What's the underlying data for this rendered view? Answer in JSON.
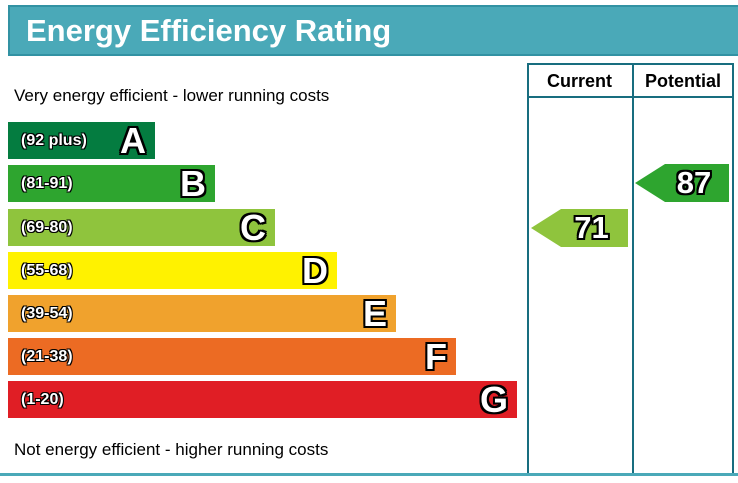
{
  "title": "Energy Efficiency Rating",
  "columns": {
    "current": "Current",
    "potential": "Potential"
  },
  "top_note": "Very energy efficient - lower running costs",
  "bottom_note": "Not energy efficient - higher running costs",
  "colors": {
    "banner_teal": "#4aa9b8",
    "table_border_teal": "#186d7f",
    "bottom_line_teal": "#4aa9b8"
  },
  "chart_data": {
    "type": "bar",
    "title": "Energy Efficiency Rating",
    "note_top": "Very energy efficient - lower running costs",
    "note_bottom": "Not energy efficient - higher running costs",
    "bands": [
      {
        "letter": "A",
        "range": "(92 plus)",
        "min": 92,
        "max": 100,
        "color": "#047c40"
      },
      {
        "letter": "B",
        "range": "(81-91)",
        "min": 81,
        "max": 91,
        "color": "#2ea52f"
      },
      {
        "letter": "C",
        "range": "(69-80)",
        "min": 69,
        "max": 80,
        "color": "#8fc43d"
      },
      {
        "letter": "D",
        "range": "(55-68)",
        "min": 55,
        "max": 68,
        "color": "#fff200"
      },
      {
        "letter": "E",
        "range": "(39-54)",
        "min": 39,
        "max": 54,
        "color": "#f0a22d"
      },
      {
        "letter": "F",
        "range": "(21-38)",
        "min": 21,
        "max": 38,
        "color": "#ec6b23"
      },
      {
        "letter": "G",
        "range": "(1-20)",
        "min": 1,
        "max": 20,
        "color": "#e01e25"
      }
    ],
    "current": {
      "value": "71",
      "band": "C",
      "color": "#8fc43d"
    },
    "potential": {
      "value": "87",
      "band": "B",
      "color": "#2ea52f"
    },
    "ylim": [
      1,
      100
    ],
    "legend_position": "none",
    "grid": false
  }
}
